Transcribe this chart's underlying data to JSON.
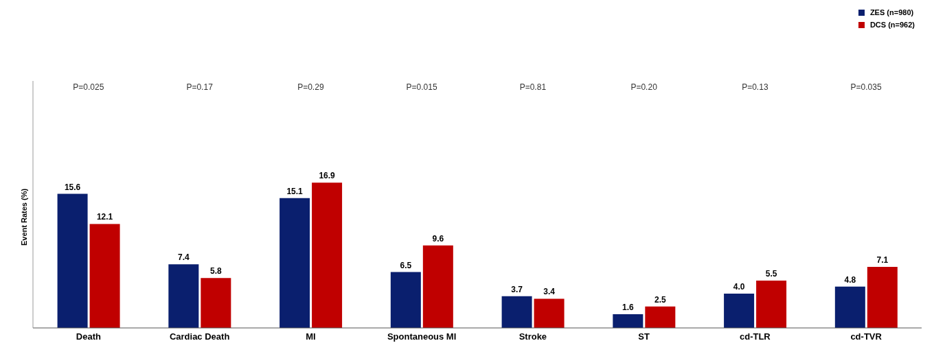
{
  "chart_data": {
    "type": "bar",
    "ylabel": "Event Rates (%)",
    "categories": [
      "Death",
      "Cardiac Death",
      "MI",
      "Spontaneous MI",
      "Stroke",
      "ST",
      "cd-TLR",
      "cd-TVR"
    ],
    "series": [
      {
        "name": "ZES (n=980)",
        "color": "#0a1f6e",
        "values": [
          15.6,
          7.4,
          15.1,
          6.5,
          3.7,
          1.6,
          4.0,
          4.8
        ],
        "value_labels": [
          "15.6",
          "7.4",
          "15.1",
          "6.5",
          "3.7",
          "1.6",
          "4.0",
          "4.8"
        ]
      },
      {
        "name": "DCS (n=962)",
        "color": "#c00000",
        "values": [
          12.1,
          5.8,
          16.9,
          9.6,
          3.4,
          2.5,
          5.5,
          7.1
        ],
        "value_labels": [
          "12.1",
          "5.8",
          "16.9",
          "9.6",
          "3.4",
          "2.5",
          "5.5",
          "7.1"
        ]
      }
    ],
    "legend": "top right",
    "grid": false,
    "annotations": [
      "P=0.025",
      "P=0.17",
      "P=0.29",
      "P=0.015",
      "P=0.81",
      "P=0.20",
      "P=0.13",
      "P=0.035"
    ]
  }
}
